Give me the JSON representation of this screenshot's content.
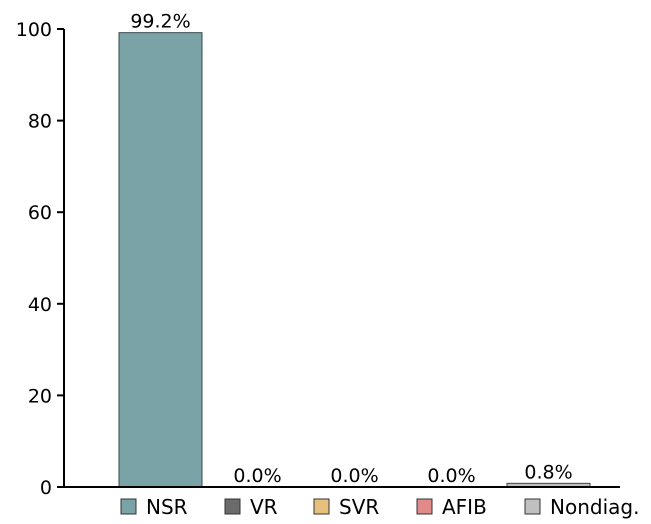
{
  "chart_data": {
    "type": "bar",
    "title": "",
    "xlabel": "",
    "ylabel": "",
    "ylim": [
      0,
      100
    ],
    "yticks": [
      0,
      20,
      40,
      60,
      80,
      100
    ],
    "categories": [
      "NSR",
      "VR",
      "SVR",
      "AFIB",
      "Nondiag."
    ],
    "values": [
      99.2,
      0.0,
      0.0,
      0.0,
      0.8
    ],
    "data_labels": [
      "99.2%",
      "0.0%",
      "0.0%",
      "0.0%",
      "0.8%"
    ],
    "colors": [
      "#7aa3a8",
      "#6b6b6b",
      "#e8c07d",
      "#e08a8a",
      "#c0c0c0"
    ],
    "grid": false,
    "legend": {
      "position": "bottom",
      "entries": [
        "NSR",
        "VR",
        "SVR",
        "AFIB",
        "Nondiag."
      ]
    }
  }
}
